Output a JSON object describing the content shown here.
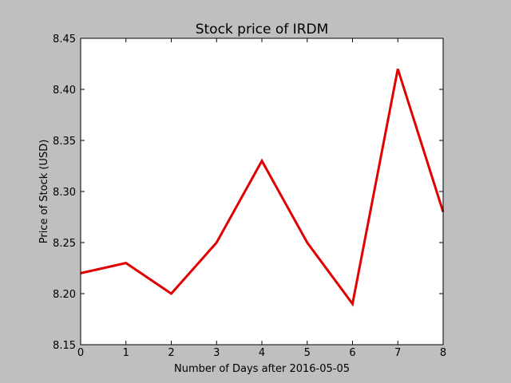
{
  "chart_data": {
    "type": "line",
    "title": "Stock price of IRDM",
    "xlabel": "Number of Days after 2016-05-05",
    "ylabel": "Price of Stock (USD)",
    "x": [
      0,
      1,
      2,
      3,
      4,
      5,
      6,
      7,
      8
    ],
    "series": [
      {
        "values": [
          8.22,
          8.23,
          8.2,
          8.25,
          8.33,
          8.25,
          8.19,
          8.42,
          8.28
        ],
        "color": "#e00000"
      }
    ],
    "xlim": [
      0,
      8
    ],
    "ylim": [
      8.15,
      8.45
    ],
    "xticks": [
      "0",
      "1",
      "2",
      "3",
      "4",
      "5",
      "6",
      "7",
      "8"
    ],
    "yticks": [
      "8.15",
      "8.20",
      "8.25",
      "8.30",
      "8.35",
      "8.40",
      "8.45"
    ],
    "grid": false,
    "legend": "none",
    "background": "#bfbfbf",
    "plot_background": "#ffffff"
  }
}
